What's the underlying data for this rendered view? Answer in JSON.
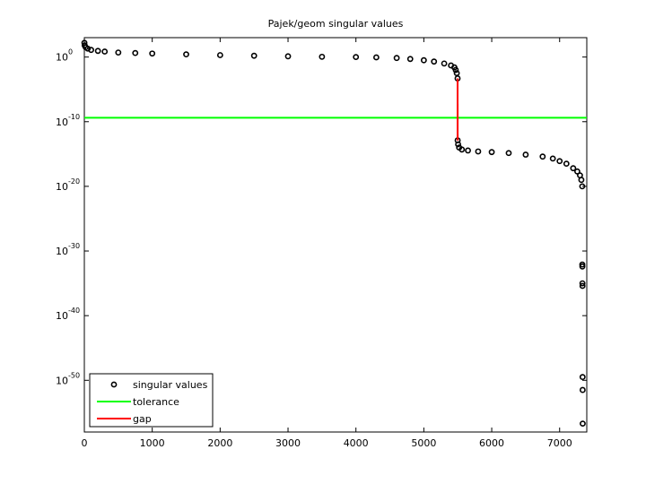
{
  "chart_data": {
    "type": "scatter",
    "title": "Pajek/geom singular values",
    "xlim": [
      0,
      7400
    ],
    "xticks": [
      0,
      1000,
      2000,
      3000,
      4000,
      5000,
      6000,
      7000
    ],
    "ylim": [
      1e-58,
      1000
    ],
    "yscale": "log",
    "yticks": [
      {
        "value": 1e-50,
        "base": "10",
        "exponent": "-50"
      },
      {
        "value": 1e-40,
        "base": "10",
        "exponent": "-40"
      },
      {
        "value": 1e-30,
        "base": "10",
        "exponent": "-30"
      },
      {
        "value": 1e-20,
        "base": "10",
        "exponent": "-20"
      },
      {
        "value": 1e-10,
        "base": "10",
        "exponent": "-10"
      },
      {
        "value": 1,
        "base": "10",
        "exponent": "0"
      }
    ],
    "grid": false,
    "legend": "lower left",
    "series": [
      {
        "name": "singular values",
        "type": "scatter",
        "color": "#000000",
        "x": [
          1,
          5,
          20,
          50,
          100,
          200,
          300,
          500,
          750,
          1000,
          1500,
          2000,
          2500,
          3000,
          3500,
          4000,
          4300,
          4600,
          4800,
          5000,
          5150,
          5300,
          5400,
          5450,
          5470,
          5485,
          5497,
          5498,
          5505,
          5520,
          5560,
          5650,
          5800,
          6000,
          6250,
          6500,
          6750,
          6900,
          7000,
          7100,
          7200,
          7260,
          7300,
          7320,
          7333,
          7334,
          7335,
          7336,
          7337,
          7338,
          7339,
          7340
        ],
        "values": [
          160,
          63,
          32,
          20,
          12.6,
          8.9,
          7.1,
          5,
          4.2,
          3.5,
          2.6,
          2,
          1.6,
          1.3,
          1.1,
          1,
          0.89,
          0.71,
          0.5,
          0.32,
          0.2,
          0.1,
          0.05,
          0.025,
          0.01,
          0.0032,
          0.0005,
          1.3e-13,
          3.2e-14,
          1e-14,
          5e-15,
          3.5e-15,
          2.5e-15,
          2e-15,
          1.4e-15,
          8e-16,
          4e-16,
          2e-16,
          8e-17,
          3.2e-17,
          6.3e-18,
          2e-18,
          5e-19,
          1e-19,
          1e-20,
          8e-33,
          4e-33,
          1e-35,
          4e-36,
          3.2e-50,
          3.2e-52,
          2e-57
        ]
      },
      {
        "name": "tolerance",
        "type": "line",
        "color": "#00ff00",
        "x": [
          0,
          7400
        ],
        "values": [
          4e-10,
          4e-10
        ]
      },
      {
        "name": "gap",
        "type": "line",
        "color": "#ff0000",
        "x": [
          5497,
          5498
        ],
        "values": [
          0.0005,
          1.3e-13
        ]
      }
    ]
  }
}
